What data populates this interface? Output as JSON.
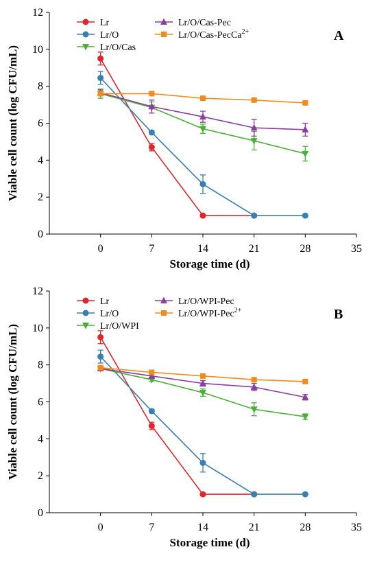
{
  "chart_data": [
    {
      "type": "line",
      "panel_label": "A",
      "xlabel": "Storage time (d)",
      "ylabel": "Viable cell count (log CFU/mL)",
      "xlim": [
        -7,
        35
      ],
      "ylim": [
        0,
        12
      ],
      "xticks": [
        0,
        7,
        14,
        21,
        28,
        35
      ],
      "yticks": [
        0,
        2,
        4,
        6,
        8,
        10,
        12
      ],
      "grid": false,
      "legend_position": "top",
      "series": [
        {
          "name": "Lr",
          "color": "#e0262b",
          "marker": "circle",
          "x": [
            0,
            7,
            14,
            21
          ],
          "y": [
            9.5,
            4.7,
            1.0,
            1.0
          ],
          "err": [
            0.35,
            0.2,
            0.0,
            0.0
          ]
        },
        {
          "name": "Lr/O",
          "color": "#3a7fb3",
          "marker": "circle",
          "x": [
            0,
            7,
            14,
            21,
            28
          ],
          "y": [
            8.45,
            5.5,
            2.7,
            1.0,
            1.0
          ],
          "err": [
            0.35,
            0.1,
            0.5,
            0.0,
            0.0
          ]
        },
        {
          "name": "Lr/O/Cas",
          "color": "#4caf3a",
          "marker": "triangle-down",
          "x": [
            0,
            7,
            14,
            21,
            28
          ],
          "y": [
            7.6,
            6.85,
            5.7,
            5.05,
            4.35
          ],
          "err": [
            0.25,
            0.3,
            0.25,
            0.5,
            0.4
          ]
        },
        {
          "name": "Lr/O/Cas-Pec",
          "color": "#8a3fa0",
          "marker": "triangle-up",
          "x": [
            0,
            7,
            14,
            21,
            28
          ],
          "y": [
            7.65,
            6.9,
            6.35,
            5.75,
            5.65
          ],
          "err": [
            0.15,
            0.35,
            0.3,
            0.45,
            0.35
          ]
        },
        {
          "name": "Lr/O/Cas-PecCa",
          "name_sup": "2+",
          "color": "#f28b1c",
          "marker": "square",
          "x": [
            0,
            7,
            14,
            21,
            28
          ],
          "y": [
            7.6,
            7.6,
            7.35,
            7.25,
            7.1
          ],
          "err": [
            0.1,
            0.1,
            0.1,
            0.08,
            0.08
          ]
        }
      ]
    },
    {
      "type": "line",
      "panel_label": "B",
      "xlabel": "Storage time (d)",
      "ylabel": "Viable cell count (log CFU/mL)",
      "xlim": [
        -7,
        35
      ],
      "ylim": [
        0,
        12
      ],
      "xticks": [
        0,
        7,
        14,
        21,
        28,
        35
      ],
      "yticks": [
        0,
        2,
        4,
        6,
        8,
        10,
        12
      ],
      "grid": false,
      "legend_position": "top",
      "series": [
        {
          "name": "Lr",
          "color": "#e0262b",
          "marker": "circle",
          "x": [
            0,
            7,
            14,
            21
          ],
          "y": [
            9.5,
            4.7,
            1.0,
            1.0
          ],
          "err": [
            0.35,
            0.2,
            0.0,
            0.0
          ]
        },
        {
          "name": "Lr/O",
          "color": "#3a7fb3",
          "marker": "circle",
          "x": [
            0,
            7,
            14,
            21,
            28
          ],
          "y": [
            8.45,
            5.5,
            2.7,
            1.0,
            1.0
          ],
          "err": [
            0.35,
            0.1,
            0.5,
            0.0,
            0.0
          ]
        },
        {
          "name": "Lr/O/WPI",
          "color": "#4caf3a",
          "marker": "triangle-down",
          "x": [
            0,
            7,
            14,
            21,
            28
          ],
          "y": [
            7.8,
            7.2,
            6.5,
            5.6,
            5.2
          ],
          "err": [
            0.1,
            0.1,
            0.2,
            0.35,
            0.15
          ]
        },
        {
          "name": "Lr/O/WPI-Pec",
          "color": "#8a3fa0",
          "marker": "triangle-up",
          "x": [
            0,
            7,
            14,
            21,
            28
          ],
          "y": [
            7.8,
            7.4,
            7.0,
            6.8,
            6.25
          ],
          "err": [
            0.1,
            0.1,
            0.15,
            0.2,
            0.15
          ]
        },
        {
          "name": "Lr/O/WPI-Pec",
          "name_sup": "2+",
          "color": "#f28b1c",
          "marker": "square",
          "x": [
            0,
            7,
            14,
            21,
            28
          ],
          "y": [
            7.85,
            7.6,
            7.4,
            7.2,
            7.1
          ],
          "err": [
            0.05,
            0.05,
            0.05,
            0.08,
            0.08
          ]
        }
      ]
    }
  ]
}
